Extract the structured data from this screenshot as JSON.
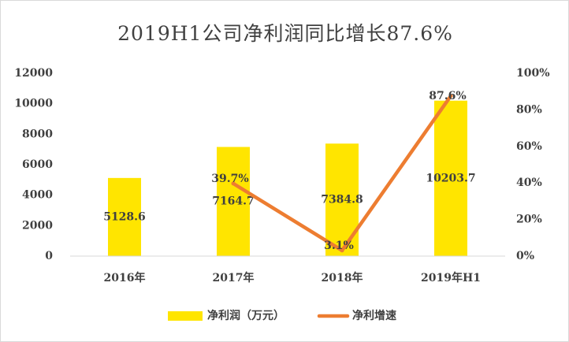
{
  "chart_data": {
    "type": "bar",
    "title": "2019H1公司净利润同比增长87.6%",
    "categories": [
      "2016年",
      "2017年",
      "2018年",
      "2019年H1"
    ],
    "series": [
      {
        "name": "净利润（万元）",
        "type": "bar",
        "axis": "left",
        "color": "#FFE500",
        "values": [
          5128.6,
          7164.7,
          7384.8,
          10203.7
        ],
        "labels": [
          "5128.6",
          "7164.7",
          "7384.8",
          "10203.7"
        ]
      },
      {
        "name": "净利增速",
        "type": "line",
        "axis": "right",
        "color": "#ED7D31",
        "values": [
          null,
          39.7,
          3.1,
          87.6
        ],
        "labels": [
          "",
          "39.7%",
          "3.1%",
          "87.6%"
        ]
      }
    ],
    "y_left": {
      "min": 0,
      "max": 12000,
      "ticks": [
        "0",
        "2000",
        "4000",
        "6000",
        "8000",
        "10000",
        "12000"
      ]
    },
    "y_right": {
      "min": 0,
      "max": 100,
      "ticks": [
        "0%",
        "20%",
        "40%",
        "60%",
        "80%",
        "100%"
      ]
    },
    "grid": false,
    "legend_position": "bottom"
  }
}
